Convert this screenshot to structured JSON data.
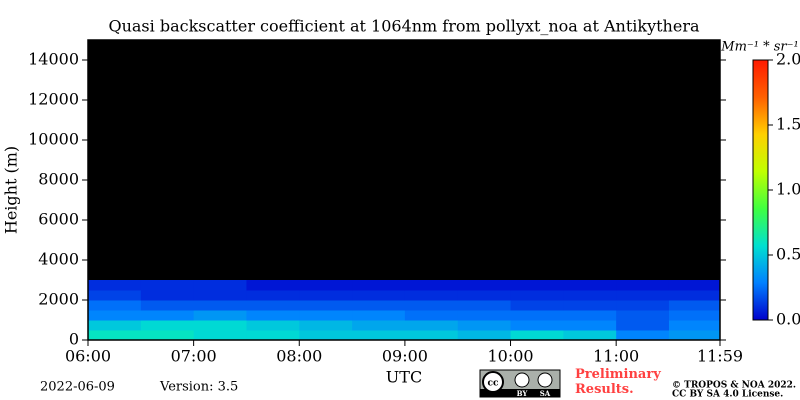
{
  "chart_data": {
    "type": "heatmap",
    "title": "Quasi backscatter coefficient at 1064nm from pollyxt_noa at Antikythera",
    "x_label": "UTC",
    "y_label": "Height (m)",
    "xlim": [
      6,
      11.983
    ],
    "xticks": [
      {
        "value": 6,
        "label": "06:00"
      },
      {
        "value": 7,
        "label": "07:00"
      },
      {
        "value": 8,
        "label": "08:00"
      },
      {
        "value": 9,
        "label": "09:00"
      },
      {
        "value": 10,
        "label": "10:00"
      },
      {
        "value": 11,
        "label": "11:00"
      },
      {
        "value": 11.983,
        "label": "11:59"
      }
    ],
    "ylim": [
      0,
      15000
    ],
    "yticks": [
      0,
      2000,
      4000,
      6000,
      8000,
      10000,
      12000,
      14000
    ],
    "xbins": [
      6,
      6.5,
      7,
      7.5,
      8,
      8.5,
      9,
      9.5,
      10,
      10.5,
      11,
      11.5,
      11.983
    ],
    "ybins": [
      0,
      500,
      1000,
      1500,
      2000,
      2500,
      3000
    ],
    "z": [
      [
        0.6,
        0.6,
        0.55,
        0.55,
        0.5,
        0.5,
        0.5,
        0.45,
        0.55,
        0.5,
        0.3,
        0.35
      ],
      [
        0.5,
        0.55,
        0.55,
        0.5,
        0.45,
        0.4,
        0.4,
        0.35,
        0.3,
        0.3,
        0.2,
        0.3
      ],
      [
        0.3,
        0.3,
        0.35,
        0.3,
        0.3,
        0.3,
        0.25,
        0.25,
        0.25,
        0.25,
        0.2,
        0.25
      ],
      [
        0.25,
        0.2,
        0.2,
        0.2,
        0.2,
        0.2,
        0.2,
        0.2,
        0.15,
        0.15,
        0.15,
        0.2
      ],
      [
        0.15,
        0.1,
        0.1,
        0.1,
        0.1,
        0.1,
        0.1,
        0.1,
        0.1,
        0.1,
        0.1,
        0.1
      ],
      [
        0.1,
        0.1,
        0.1,
        0.05,
        0.05,
        0.05,
        0.05,
        0.05,
        0.05,
        0.05,
        0.05,
        0.05
      ]
    ],
    "clim": [
      0,
      2
    ],
    "colors": [
      "#0000cc",
      "#0080ff",
      "#00e0d0",
      "#40ff40",
      "#c0ff00",
      "#ffd000",
      "#ff6000",
      "#ff1a00"
    ],
    "background": "#000000",
    "colorbar_label": "Mm⁻¹ * sr⁻¹",
    "colorbar_ticks": [
      {
        "value": 0,
        "label": "0.0"
      },
      {
        "value": 0.5,
        "label": "0.5"
      },
      {
        "value": 1,
        "label": "1.0"
      },
      {
        "value": 1.5,
        "label": "1.5"
      },
      {
        "value": 2,
        "label": "2.0"
      }
    ]
  },
  "footer": {
    "date": "2022-06-09",
    "version": "Version: 3.5",
    "badge": [
      "cc",
      "BY",
      "SA"
    ],
    "notice": "Preliminary Results.",
    "copyright": "© TROPOS & NOA 2022.",
    "license": "CC BY SA 4.0 License."
  }
}
